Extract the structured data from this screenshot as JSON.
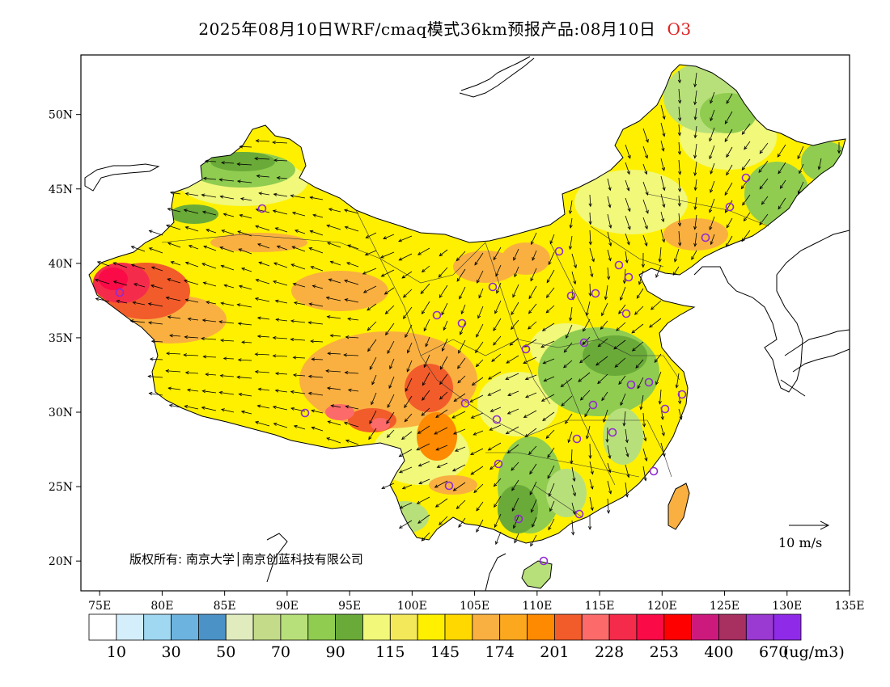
{
  "title": {
    "text": "2025年08月10日WRF/cmaq模式36km预报产品:08月10日",
    "species": "O3"
  },
  "axes": {
    "y_labels": [
      "50N",
      "45N",
      "40N",
      "35N",
      "30N",
      "25N",
      "20N"
    ],
    "y_values": [
      50,
      45,
      40,
      35,
      30,
      25,
      20
    ],
    "x_labels": [
      "75E",
      "80E",
      "85E",
      "90E",
      "95E",
      "100E",
      "105E",
      "110E",
      "115E",
      "120E",
      "125E",
      "130E",
      "135E"
    ],
    "x_values": [
      75,
      80,
      85,
      90,
      95,
      100,
      105,
      110,
      115,
      120,
      125,
      130,
      135
    ],
    "lon_range": [
      73.5,
      135
    ],
    "lat_range": [
      18,
      54
    ]
  },
  "copyright": "版权所有: 南京大学│南京创蓝科技有限公司",
  "wind_scale": {
    "label": "10 m/s"
  },
  "legend": {
    "colors": [
      "#ffffff",
      "#d4eefb",
      "#a0d8f2",
      "#6db3e0",
      "#4b92c7",
      "#e0ecbe",
      "#c4dc8a",
      "#b8e07a",
      "#8fcc50",
      "#6aaa38",
      "#f1f87a",
      "#f3e85a",
      "#fff000",
      "#ffd800",
      "#f9b040",
      "#fca81f",
      "#fd8a00",
      "#f25c2a",
      "#fc6a6a",
      "#f52b4b",
      "#fa0a46",
      "#ff0000",
      "#cc1a7c",
      "#a83060",
      "#9a3ad2",
      "#8f2be8"
    ],
    "labels": [
      "10",
      "30",
      "50",
      "70",
      "90",
      "115",
      "145",
      "174",
      "201",
      "228",
      "253",
      "400",
      "670"
    ],
    "unit": "(ug/m3)"
  }
}
